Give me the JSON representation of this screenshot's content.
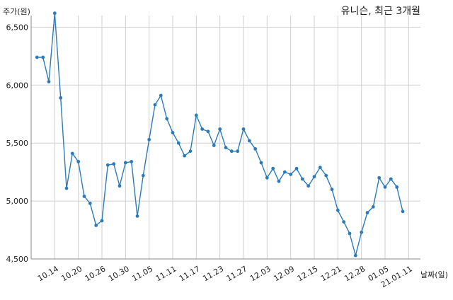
{
  "chart_data": {
    "type": "line",
    "title": "유니슨, 최근 3개월",
    "ylabel": "주가(원)",
    "xlabel": "날짜(일)",
    "ylim": [
      4500,
      6600
    ],
    "yticks": [
      4500,
      5000,
      5500,
      6000,
      6500
    ],
    "ytick_labels": [
      "4,500",
      "5,000",
      "5,500",
      "6,000",
      "6,500"
    ],
    "xticks": [
      {
        "x": 3,
        "label": "10.14"
      },
      {
        "x": 7,
        "label": "10.20"
      },
      {
        "x": 11,
        "label": "10.26"
      },
      {
        "x": 15,
        "label": "10.30"
      },
      {
        "x": 19,
        "label": "11.05"
      },
      {
        "x": 23,
        "label": "11.11"
      },
      {
        "x": 27,
        "label": "11.17"
      },
      {
        "x": 31,
        "label": "11.23"
      },
      {
        "x": 35,
        "label": "11.27"
      },
      {
        "x": 39,
        "label": "12.03"
      },
      {
        "x": 43,
        "label": "12.09"
      },
      {
        "x": 47,
        "label": "12.15"
      },
      {
        "x": 51,
        "label": "12.21"
      },
      {
        "x": 55,
        "label": "12.28"
      },
      {
        "x": 59,
        "label": "01.05"
      },
      {
        "x": 63,
        "label": "21.01.11"
      }
    ],
    "xlim": [
      -1,
      65
    ],
    "grid": true,
    "series": [
      {
        "color": "#2b7bb9",
        "x": [
          0,
          1,
          2,
          3,
          4,
          5,
          6,
          7,
          8,
          9,
          10,
          11,
          12,
          13,
          14,
          15,
          16,
          17,
          18,
          19,
          20,
          21,
          22,
          23,
          24,
          25,
          26,
          27,
          28,
          29,
          30,
          31,
          32,
          33,
          34,
          35,
          36,
          37,
          38,
          39,
          40,
          41,
          42,
          43,
          44,
          45,
          46,
          47,
          48,
          49,
          50,
          51,
          52,
          53,
          54,
          55,
          56,
          57,
          58,
          59,
          60,
          61,
          62,
          63
        ],
        "values": [
          6240,
          6240,
          6030,
          6620,
          5890,
          5110,
          5410,
          5340,
          5040,
          4980,
          4790,
          4830,
          5310,
          5320,
          5130,
          5330,
          5340,
          4870,
          5220,
          5530,
          5830,
          5910,
          5710,
          5590,
          5500,
          5390,
          5430,
          5740,
          5620,
          5600,
          5480,
          5620,
          5460,
          5430,
          5430,
          5620,
          5520,
          5450,
          5330,
          5200,
          5280,
          5170,
          5250,
          5230,
          5280,
          5190,
          5130,
          5210,
          5290,
          5220,
          5100,
          4920,
          4820,
          4720,
          4530,
          4730,
          4900,
          4950,
          5200,
          5120,
          5190,
          5120,
          4910,
          null
        ]
      }
    ]
  }
}
